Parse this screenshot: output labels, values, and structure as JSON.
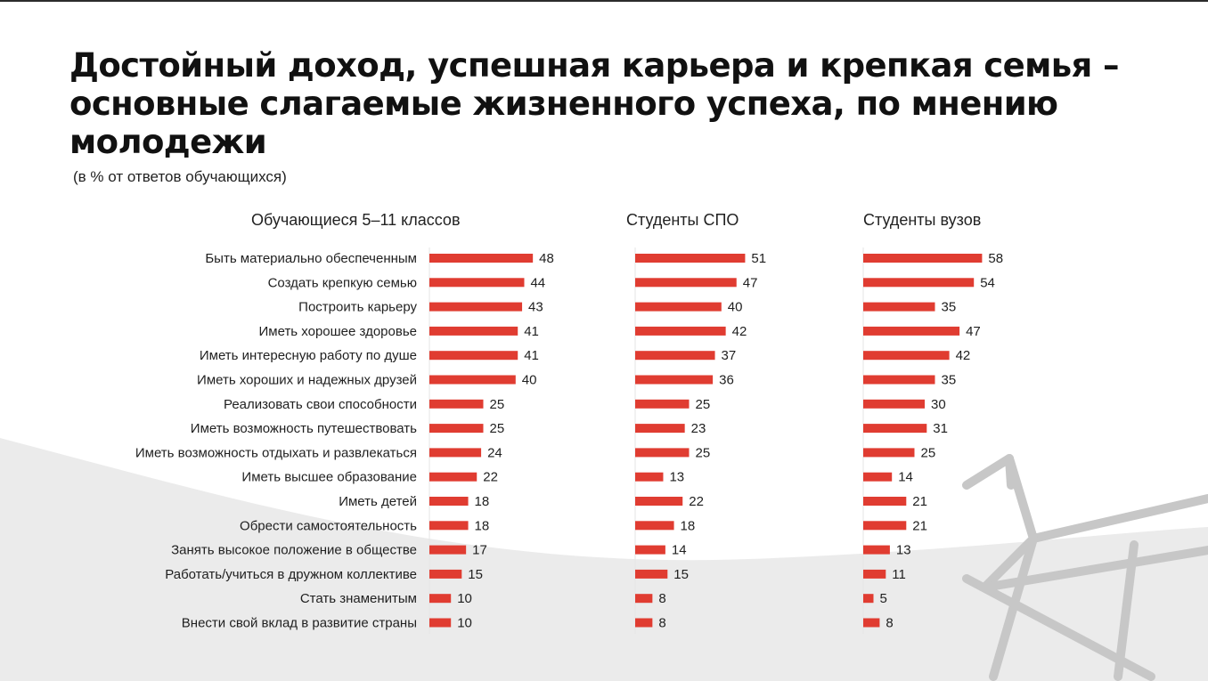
{
  "title": "Достойный доход, успешная карьера и крепкая семья – основные слагаемые жизненного успеха, по мнению молодежи",
  "subtitle": "(в % от ответов обучающихся)",
  "colors": {
    "bar": "#e03c31",
    "background_wave": "#ebebeb",
    "decor_stroke": "#c7c7c7",
    "axis": "#e6e6e6"
  },
  "chart_data": {
    "type": "bar",
    "orientation": "horizontal",
    "unit": "%",
    "categories": [
      "Быть материально обеспеченным",
      "Создать крепкую семью",
      "Построить карьеру",
      "Иметь хорошее здоровье",
      "Иметь интересную работу по душе",
      "Иметь хороших и надежных друзей",
      "Реализовать свои способности",
      "Иметь возможность путешествовать",
      "Иметь возможность отдыхать и развлекаться",
      "Иметь высшее образование",
      "Иметь детей",
      "Обрести самостоятельность",
      "Занять высокое положение в обществе",
      "Работать/учиться в дружном коллективе",
      "Стать знаменитым",
      "Внести свой вклад в развитие страны"
    ],
    "series": [
      {
        "name": "Обучающиеся 5–11 классов",
        "values": [
          48,
          44,
          43,
          41,
          41,
          40,
          25,
          25,
          24,
          22,
          18,
          18,
          17,
          15,
          10,
          10
        ]
      },
      {
        "name": "Студенты СПО",
        "values": [
          51,
          47,
          40,
          42,
          37,
          36,
          25,
          23,
          25,
          13,
          22,
          18,
          14,
          15,
          8,
          8
        ]
      },
      {
        "name": "Студенты вузов",
        "values": [
          58,
          54,
          35,
          47,
          42,
          35,
          30,
          31,
          25,
          14,
          21,
          21,
          13,
          11,
          5,
          8
        ]
      }
    ]
  }
}
